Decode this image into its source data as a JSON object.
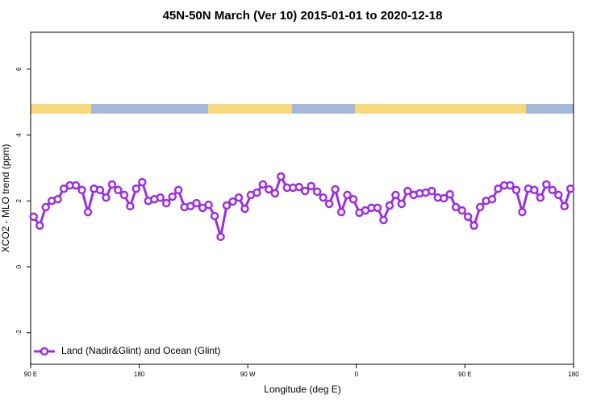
{
  "chart_data": {
    "type": "line",
    "title": "45N-50N March (Ver 10)   2015-01-01 to 2020-12-18",
    "x_label": "Longitude (deg E)",
    "y_label": "XCO2 - MLO trend (ppm)",
    "x": [
      92.5,
      97.5,
      102.5,
      107.5,
      112.5,
      117.5,
      122.5,
      127.5,
      132.5,
      137.5,
      142.5,
      147.5,
      152.5,
      157.5,
      162.5,
      167.5,
      172.5,
      177.5,
      182.5,
      187.5,
      192.5,
      197.5,
      202.5,
      207.5,
      212.5,
      217.5,
      222.5,
      227.5,
      232.5,
      237.5,
      242.5,
      247.5,
      252.5,
      257.5,
      262.5,
      267.5,
      272.5,
      277.5,
      282.5,
      287.5,
      292.5,
      297.5,
      302.5,
      307.5,
      312.5,
      317.5,
      322.5,
      327.5,
      332.5,
      337.5,
      342.5,
      347.5,
      352.5,
      357.5,
      362.5,
      367.5,
      372.5,
      377.5,
      382.5,
      387.5,
      392.5,
      397.5,
      402.5,
      407.5,
      412.5,
      417.5,
      422.5,
      427.5,
      432.5,
      437.5,
      442.5,
      447.5,
      452.5,
      457.5,
      462.5,
      467.5,
      472.5,
      477.5,
      482.5,
      487.5,
      492.5,
      497.5,
      502.5,
      507.5,
      512.5,
      517.5,
      522.5,
      527.5,
      532.5,
      537.5
    ],
    "series": [
      {
        "name": "Land (Nadir&Glint) and Ocean (Glint)",
        "color": "#9b30e0",
        "values": [
          1.52,
          1.25,
          1.81,
          2.0,
          2.05,
          2.37,
          2.47,
          2.47,
          2.33,
          1.66,
          2.37,
          2.33,
          2.1,
          2.5,
          2.33,
          2.18,
          1.84,
          2.37,
          2.57,
          2.0,
          2.05,
          2.1,
          1.93,
          2.13,
          2.33,
          1.81,
          1.84,
          1.93,
          1.79,
          1.88,
          1.54,
          0.91,
          1.86,
          1.98,
          2.1,
          1.76,
          2.18,
          2.25,
          2.5,
          2.35,
          2.23,
          2.74,
          2.4,
          2.4,
          2.42,
          2.3,
          2.45,
          2.28,
          2.1,
          1.91,
          2.35,
          1.66,
          2.18,
          2.05,
          1.64,
          1.71,
          1.79,
          1.79,
          1.42,
          1.86,
          2.18,
          1.91,
          2.3,
          2.18,
          2.23,
          2.25,
          2.3,
          2.1,
          2.08,
          2.2,
          1.81,
          1.71,
          1.52,
          1.25,
          1.81,
          2.0,
          2.05,
          2.37,
          2.47,
          2.47,
          2.33,
          1.66,
          2.37,
          2.33,
          2.1,
          2.5,
          2.33,
          2.18,
          1.84,
          2.37
        ]
      }
    ],
    "xlim": [
      90,
      540
    ],
    "xticks": [
      {
        "value": 90,
        "label": "90 E"
      },
      180,
      {
        "value": 270,
        "label": "90 W"
      },
      {
        "value": 360,
        "label": "0"
      },
      {
        "value": 450,
        "label": "90 E"
      },
      {
        "value": 540,
        "label": "180"
      }
    ],
    "ylim": [
      -2.96,
      7.12
    ],
    "yticks": [
      -2,
      0,
      2,
      4,
      6
    ],
    "legend": "bottom-left"
  }
}
